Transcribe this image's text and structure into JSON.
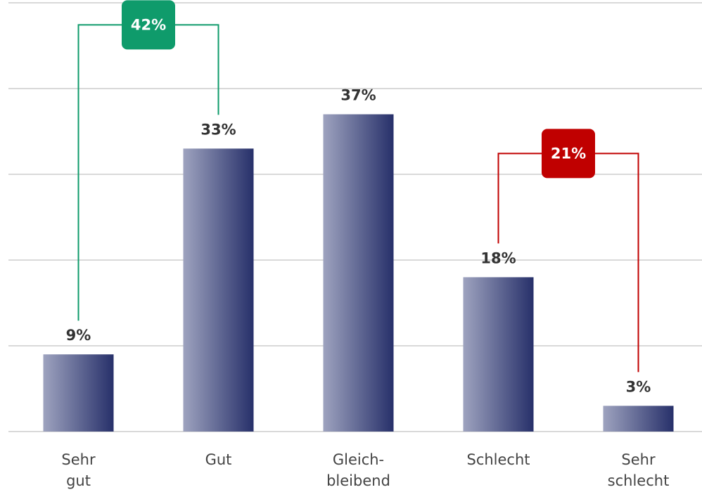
{
  "chart_data": {
    "type": "bar",
    "categories": [
      "Sehr gut",
      "Gut",
      "Gleich-bleibend",
      "Schlecht",
      "Sehr schlecht"
    ],
    "values": [
      9,
      33,
      37,
      18,
      3
    ],
    "value_labels": [
      "9%",
      "33%",
      "37%",
      "18%",
      "3%"
    ],
    "color": [
      "#9ea3bf",
      "#27306a"
    ],
    "ylim": [
      0,
      50
    ],
    "yticks": [
      0,
      10,
      20,
      30,
      40,
      50
    ],
    "grid": true,
    "annotations": [
      {
        "label": "42%",
        "between": [
          "Sehr gut",
          "Gut"
        ],
        "color": "#0f9b6b"
      },
      {
        "label": "21%",
        "between": [
          "Schlecht",
          "Sehr schlecht"
        ],
        "color": "#c00000"
      }
    ]
  }
}
